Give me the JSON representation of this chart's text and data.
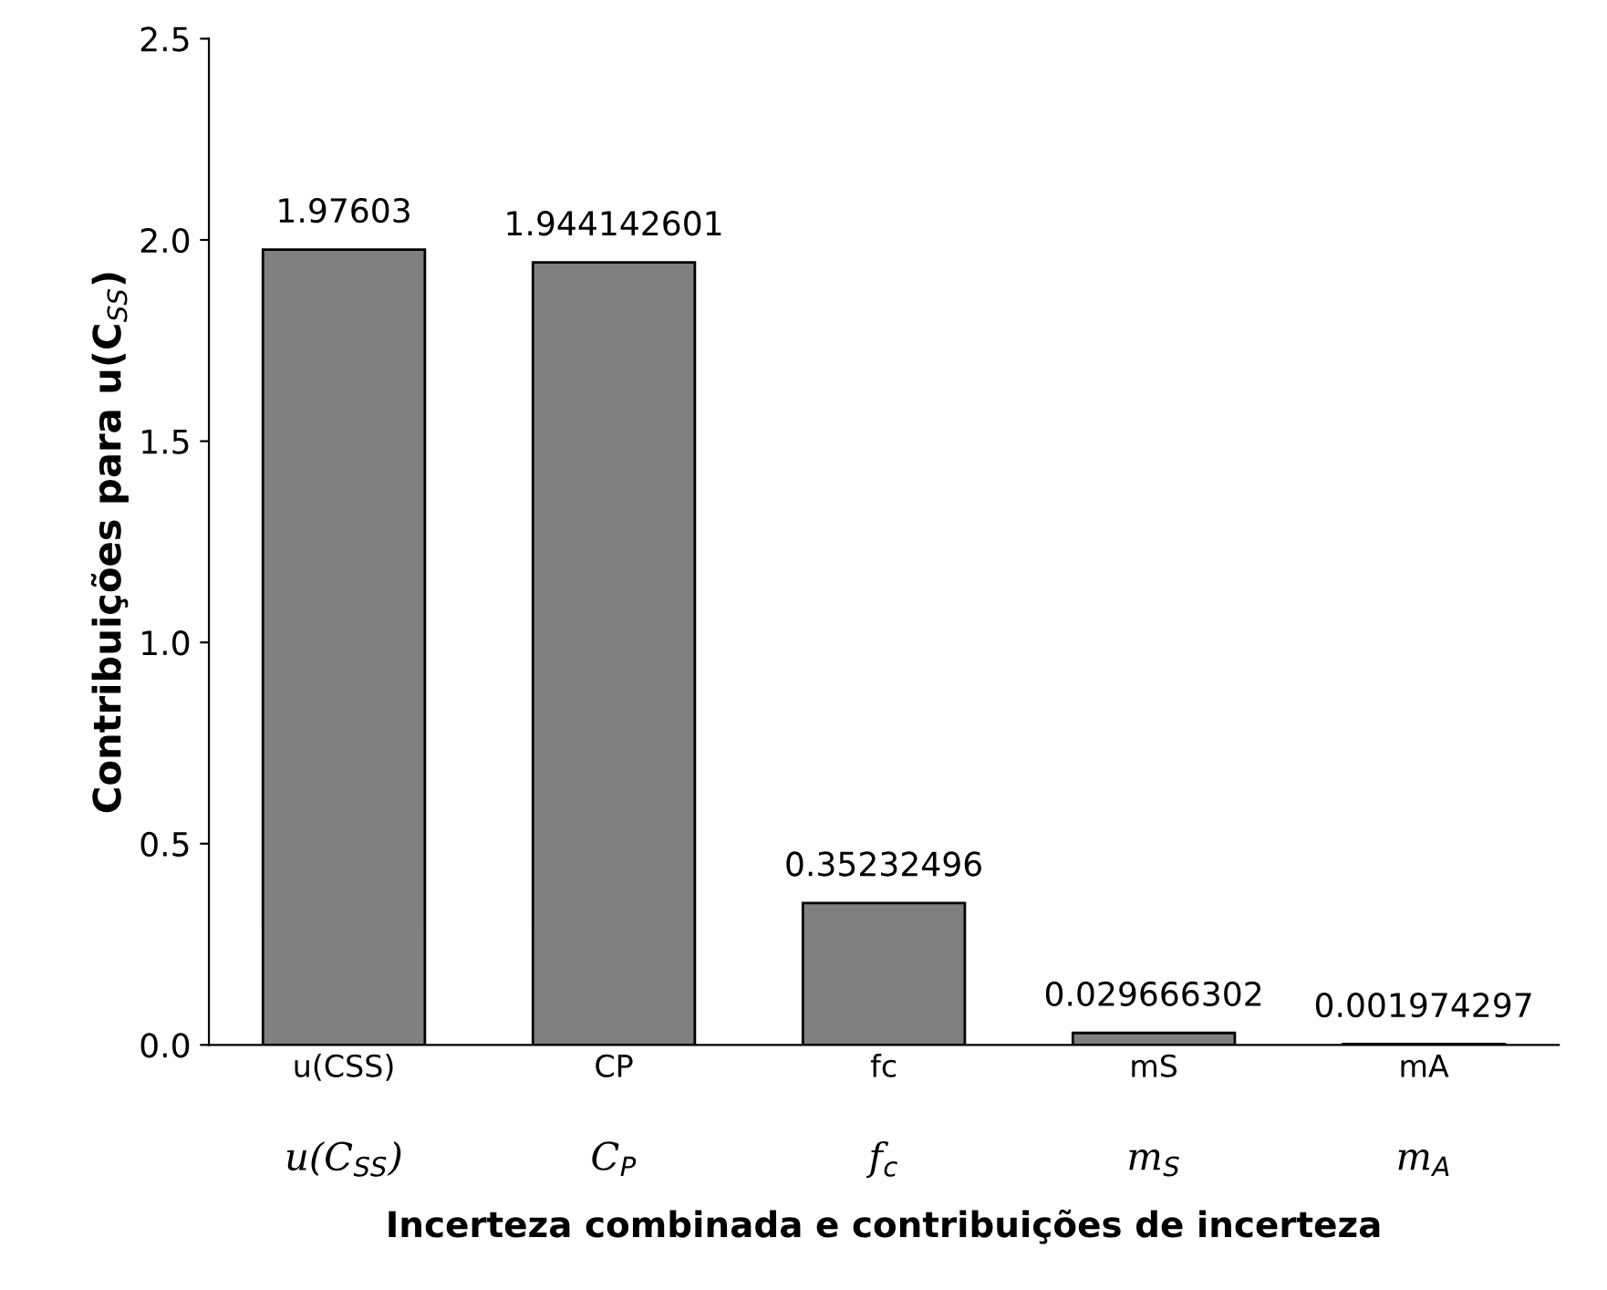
{
  "chart_data": {
    "type": "bar",
    "xlabel": "Incerteza combinada e contribuições de incerteza",
    "ylabel": "Contribuições para u(C$_{SS}$)",
    "categories": [
      "u(CSS)",
      "CP",
      "fc",
      "mS",
      "mA"
    ],
    "values": [
      1.97603,
      1.944142601,
      0.35232496,
      0.029666302,
      0.001974297
    ],
    "color": "#808080",
    "data_labels": true,
    "ylim": [
      0,
      2.5
    ],
    "yticks": [
      {
        "value": 0,
        "label": "0.0"
      },
      {
        "value": 0.5,
        "label": "0.5"
      },
      {
        "value": 1,
        "label": "1.0"
      },
      {
        "value": 1.5,
        "label": "1.5"
      },
      {
        "value": 2,
        "label": "2.0"
      },
      {
        "value": 2.5,
        "label": "2.5"
      }
    ],
    "grid": false,
    "annotations": [
      "u(C$_{SS}$)",
      "C$_{P}$",
      "f$_{c}$",
      "m$_{S}$",
      "m$_{A}$"
    ]
  }
}
